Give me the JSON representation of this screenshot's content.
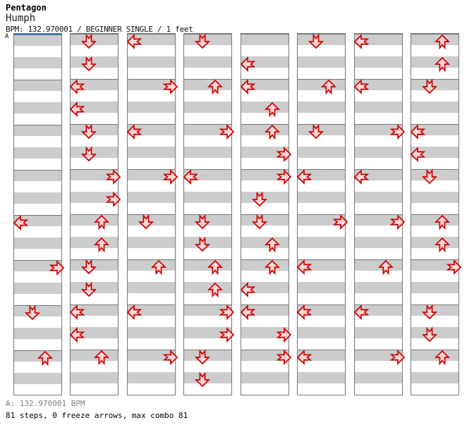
{
  "header": {
    "artist": "Pentagon",
    "song_title": "Humph",
    "chart_info": "BPM: 132.970001 / BEGINNER SINGLE / 1 feet"
  },
  "marker": {
    "label": "A"
  },
  "footer": {
    "bpm_line": "A: 132.970001 BPM",
    "summary_line": "81 steps, 0 freeze arrows, max combo 81"
  },
  "colors": {
    "stripe": "#cccccc",
    "line": "#777777",
    "marker": "#3377cc",
    "arrow-fill": "#ffd6d6",
    "arrow-outline": "#cc0000",
    "muted": "#808080"
  },
  "chart_data": {
    "type": "step-chart",
    "total_steps": 81,
    "freeze_arrows": 0,
    "max_combo": 81,
    "bpm": "132.970001",
    "difficulty": "BEGINNER SINGLE",
    "feet": 1,
    "rows_per_column": 32,
    "rows_per_measure": 4,
    "lane_order": [
      "L",
      "D",
      "U",
      "R"
    ],
    "dir_names": {
      "L": "left",
      "D": "down",
      "U": "up",
      "R": "right"
    },
    "columns": [
      {
        "steps": [
          [
            16,
            "L"
          ],
          [
            20,
            "R"
          ],
          [
            24,
            "D"
          ],
          [
            28,
            "U"
          ]
        ]
      },
      {
        "steps": [
          [
            0,
            "D"
          ],
          [
            2,
            "D"
          ],
          [
            4,
            "L"
          ],
          [
            6,
            "L"
          ],
          [
            8,
            "D"
          ],
          [
            10,
            "D"
          ],
          [
            12,
            "R"
          ],
          [
            14,
            "R"
          ],
          [
            16,
            "U"
          ],
          [
            18,
            "U"
          ],
          [
            20,
            "D"
          ],
          [
            22,
            "D"
          ],
          [
            24,
            "L"
          ],
          [
            26,
            "L"
          ],
          [
            28,
            "U"
          ]
        ]
      },
      {
        "steps": [
          [
            0,
            "L"
          ],
          [
            4,
            "R"
          ],
          [
            8,
            "L"
          ],
          [
            12,
            "R"
          ],
          [
            16,
            "D"
          ],
          [
            20,
            "U"
          ],
          [
            24,
            "L"
          ],
          [
            28,
            "R"
          ]
        ]
      },
      {
        "steps": [
          [
            0,
            "D"
          ],
          [
            4,
            "U"
          ],
          [
            8,
            "R"
          ],
          [
            12,
            "L"
          ],
          [
            16,
            "D"
          ],
          [
            18,
            "D"
          ],
          [
            20,
            "U"
          ],
          [
            22,
            "U"
          ],
          [
            24,
            "R"
          ],
          [
            26,
            "R"
          ],
          [
            28,
            "D"
          ],
          [
            30,
            "D"
          ]
        ]
      },
      {
        "steps": [
          [
            2,
            "L"
          ],
          [
            4,
            "L"
          ],
          [
            6,
            "U"
          ],
          [
            8,
            "U"
          ],
          [
            10,
            "R"
          ],
          [
            12,
            "R"
          ],
          [
            14,
            "D"
          ],
          [
            16,
            "D"
          ],
          [
            18,
            "U"
          ],
          [
            20,
            "U"
          ],
          [
            22,
            "L"
          ],
          [
            24,
            "L"
          ],
          [
            26,
            "R"
          ],
          [
            28,
            "R"
          ]
        ]
      },
      {
        "steps": [
          [
            0,
            "D"
          ],
          [
            4,
            "U"
          ],
          [
            8,
            "D"
          ],
          [
            12,
            "L"
          ],
          [
            16,
            "R"
          ],
          [
            20,
            "L"
          ],
          [
            24,
            "L"
          ],
          [
            28,
            "L"
          ]
        ]
      },
      {
        "steps": [
          [
            0,
            "L"
          ],
          [
            4,
            "L"
          ],
          [
            8,
            "R"
          ],
          [
            12,
            "L"
          ],
          [
            16,
            "R"
          ],
          [
            20,
            "U"
          ],
          [
            24,
            "L"
          ],
          [
            28,
            "R"
          ]
        ]
      },
      {
        "steps": [
          [
            0,
            "U"
          ],
          [
            2,
            "U"
          ],
          [
            4,
            "D"
          ],
          [
            8,
            "L"
          ],
          [
            10,
            "L"
          ],
          [
            12,
            "D"
          ],
          [
            16,
            "U"
          ],
          [
            18,
            "U"
          ],
          [
            20,
            "R"
          ],
          [
            24,
            "D"
          ],
          [
            26,
            "D"
          ],
          [
            28,
            "U"
          ]
        ]
      }
    ]
  }
}
